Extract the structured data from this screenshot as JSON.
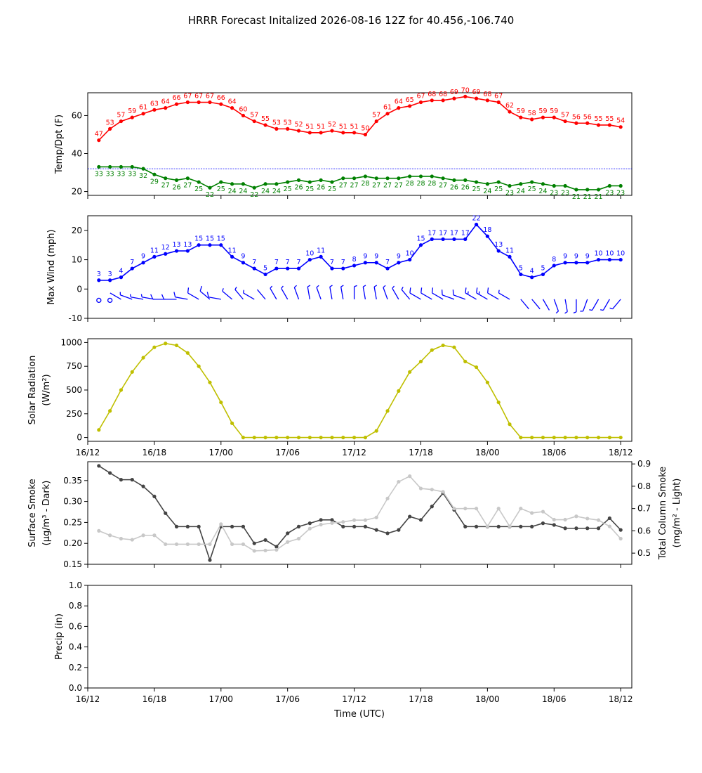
{
  "title": "HRRR Forecast Initalized 2026-08-16 12Z for 40.456,-106.740",
  "xlabel": "Time (UTC)",
  "x_tick_labels": [
    "16/12",
    "16/18",
    "17/00",
    "17/06",
    "17/12",
    "17/18",
    "18/00",
    "18/06",
    "18/12"
  ],
  "x_ticks_hours": [
    0,
    6,
    12,
    18,
    24,
    30,
    36,
    42,
    48
  ],
  "hours": [
    1,
    2,
    3,
    4,
    5,
    6,
    7,
    8,
    9,
    10,
    11,
    12,
    13,
    14,
    15,
    16,
    17,
    18,
    19,
    20,
    21,
    22,
    23,
    24,
    25,
    26,
    27,
    28,
    29,
    30,
    31,
    32,
    33,
    34,
    35,
    36,
    37,
    38,
    39,
    40,
    41,
    42,
    43,
    44,
    45,
    46,
    47,
    48
  ],
  "xlim": [
    0,
    49
  ],
  "chart_data": [
    {
      "type": "line",
      "ylabel": "Temp/Dpt (F)",
      "ylim": [
        18,
        72
      ],
      "yticks": [
        20,
        40,
        60
      ],
      "reference_line": 32,
      "series": [
        {
          "color": "#ff0000",
          "values": [
            47,
            53,
            57,
            59,
            61,
            63,
            64,
            66,
            67,
            67,
            67,
            66,
            64,
            60,
            57,
            55,
            53,
            53,
            52,
            51,
            51,
            52,
            51,
            51,
            50,
            57,
            61,
            64,
            65,
            67,
            68,
            68,
            69,
            70,
            69,
            68,
            67,
            62,
            59,
            58,
            59,
            59,
            57,
            56,
            56,
            55,
            55,
            54
          ]
        },
        {
          "color": "#008000",
          "values": [
            33,
            33,
            33,
            33,
            32,
            29,
            27,
            26,
            27,
            25,
            22,
            25,
            24,
            24,
            22,
            24,
            24,
            25,
            26,
            25,
            26,
            25,
            27,
            27,
            28,
            27,
            27,
            27,
            28,
            28,
            28,
            27,
            26,
            26,
            25,
            24,
            25,
            23,
            24,
            25,
            24,
            23,
            23,
            21,
            21,
            21,
            23,
            23
          ]
        }
      ]
    },
    {
      "type": "line",
      "ylabel": "Max Wind (mph)",
      "ylim": [
        -10,
        25
      ],
      "yticks": [
        -10,
        0,
        10,
        20
      ],
      "series": [
        {
          "color": "#0000ff",
          "values": [
            3,
            3,
            4,
            7,
            9,
            11,
            12,
            13,
            13,
            15,
            15,
            15,
            11,
            9,
            7,
            5,
            7,
            7,
            7,
            10,
            11,
            7,
            7,
            8,
            9,
            9,
            7,
            9,
            10,
            15,
            17,
            17,
            17,
            17,
            22,
            18,
            13,
            11,
            5,
            4,
            5,
            8,
            9,
            9,
            9,
            10,
            10,
            10
          ]
        }
      ],
      "barbs_direction_deg": [
        190,
        140,
        300,
        290,
        280,
        280,
        270,
        270,
        280,
        300,
        310,
        280,
        310,
        320,
        300,
        320,
        330,
        330,
        340,
        350,
        340,
        350,
        350,
        360,
        350,
        350,
        340,
        330,
        320,
        300,
        300,
        300,
        290,
        290,
        300,
        300,
        300,
        300,
        140,
        140,
        150,
        160,
        170,
        180,
        200,
        210,
        210,
        220
      ]
    },
    {
      "type": "line",
      "ylabel": "Solar Radiation",
      "ylabel_unit": "(W/m²)",
      "ylim": [
        -40,
        1040
      ],
      "yticks": [
        0,
        250,
        500,
        750,
        1000
      ],
      "series": [
        {
          "color": "#bfbf00",
          "values": [
            80,
            280,
            500,
            690,
            840,
            950,
            990,
            970,
            890,
            750,
            580,
            370,
            150,
            0,
            0,
            0,
            0,
            0,
            0,
            0,
            0,
            0,
            0,
            0,
            0,
            70,
            280,
            490,
            690,
            800,
            920,
            970,
            950,
            800,
            740,
            580,
            370,
            140,
            0,
            0,
            0,
            0,
            0,
            0,
            0,
            0,
            0,
            0
          ]
        }
      ]
    },
    {
      "type": "line",
      "ylabel": "Surface Smoke",
      "ylabel_unit": "(μg/m³ - Dark)",
      "ylim": [
        0.15,
        0.395
      ],
      "yticks": [
        0.15,
        0.2,
        0.25,
        0.3,
        0.35
      ],
      "y2label": "Total Column Smoke",
      "y2label_unit": "(mg/m² - Light)",
      "y2lim": [
        0.45,
        0.91
      ],
      "y2ticks": [
        0.5,
        0.6,
        0.7,
        0.8,
        0.9
      ],
      "series": [
        {
          "color": "#444444",
          "axis": "left",
          "values": [
            0.385,
            0.368,
            0.352,
            0.352,
            0.336,
            0.312,
            0.272,
            0.24,
            0.24,
            0.24,
            0.16,
            0.24,
            0.24,
            0.24,
            0.2,
            0.208,
            0.192,
            0.224,
            0.24,
            0.248,
            0.256,
            0.256,
            0.24,
            0.24,
            0.24,
            0.232,
            0.224,
            0.232,
            0.264,
            0.256,
            0.288,
            0.32,
            0.28,
            0.24,
            0.24,
            0.24,
            0.24,
            0.24,
            0.24,
            0.24,
            0.248,
            0.244,
            0.236,
            0.236,
            0.236,
            0.236,
            0.26,
            0.232
          ]
        },
        {
          "color": "#c8c8c8",
          "axis": "right",
          "values": [
            0.6,
            0.58,
            0.565,
            0.56,
            0.58,
            0.58,
            0.54,
            0.54,
            0.54,
            0.54,
            0.54,
            0.63,
            0.54,
            0.54,
            0.51,
            0.512,
            0.515,
            0.55,
            0.565,
            0.61,
            0.628,
            0.635,
            0.64,
            0.648,
            0.648,
            0.66,
            0.745,
            0.82,
            0.845,
            0.79,
            0.785,
            0.775,
            0.7,
            0.7,
            0.7,
            0.62,
            0.7,
            0.62,
            0.7,
            0.68,
            0.686,
            0.65,
            0.65,
            0.665,
            0.655,
            0.648,
            0.62,
            0.565
          ]
        }
      ]
    },
    {
      "type": "line",
      "ylabel": "Precip (in)",
      "ylim": [
        0,
        1
      ],
      "yticks": [
        0.0,
        0.2,
        0.4,
        0.6,
        0.8,
        1.0
      ],
      "series": []
    }
  ]
}
